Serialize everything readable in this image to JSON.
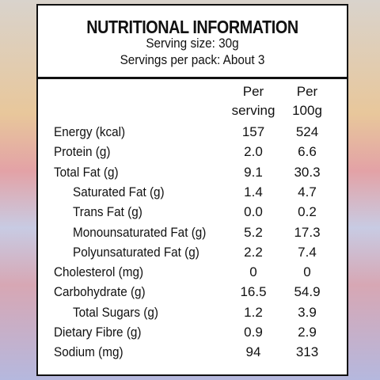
{
  "header": {
    "title": "NUTRITIONAL INFORMATION",
    "lines": [
      "Serving size: 30g",
      "Servings per pack: About 3"
    ]
  },
  "table": {
    "columns": [
      "Per serving",
      "Per 100g"
    ],
    "rows": [
      {
        "label": "Energy (kcal)",
        "indent": false,
        "values": [
          "157",
          "524"
        ]
      },
      {
        "label": "Protein (g)",
        "indent": false,
        "values": [
          "2.0",
          "6.6"
        ]
      },
      {
        "label": "Total Fat (g)",
        "indent": false,
        "values": [
          "9.1",
          "30.3"
        ]
      },
      {
        "label": "Saturated Fat (g)",
        "indent": true,
        "values": [
          "1.4",
          "4.7"
        ]
      },
      {
        "label": "Trans Fat (g)",
        "indent": true,
        "values": [
          "0.0",
          "0.2"
        ]
      },
      {
        "label": "Monounsaturated Fat (g)",
        "indent": true,
        "values": [
          "5.2",
          "17.3"
        ]
      },
      {
        "label": "Polyunsaturated Fat (g)",
        "indent": true,
        "values": [
          "2.2",
          "7.4"
        ]
      },
      {
        "label": "Cholesterol (mg)",
        "indent": false,
        "values": [
          "0",
          "0"
        ]
      },
      {
        "label": "Carbohydrate (g)",
        "indent": false,
        "values": [
          "16.5",
          "54.9"
        ]
      },
      {
        "label": "Total Sugars (g)",
        "indent": true,
        "values": [
          "1.2",
          "3.9"
        ]
      },
      {
        "label": "Dietary Fibre (g)",
        "indent": false,
        "values": [
          "0.9",
          "2.9"
        ]
      },
      {
        "label": "Sodium (mg)",
        "indent": false,
        "values": [
          "94",
          "313"
        ]
      }
    ]
  }
}
